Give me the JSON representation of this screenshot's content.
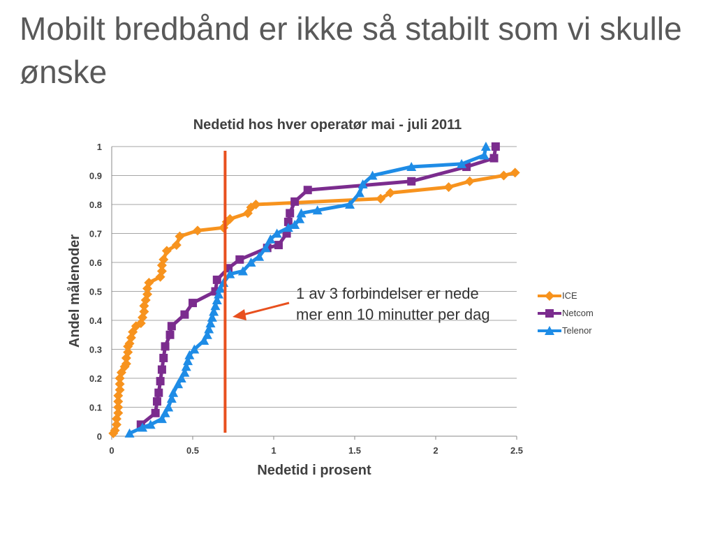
{
  "slide": {
    "title": "Mobilt bredbånd er ikke så stabilt som vi skulle ønske"
  },
  "annotation": {
    "line1": "1 av 3 forbindelser er nede",
    "line2": "mer enn 10 minutter per dag",
    "color": "#E8501E"
  },
  "chart_data": {
    "type": "line",
    "title": "Nedetid hos hver operatør mai - juli 2011",
    "xlabel": "Nedetid i prosent",
    "ylabel": "Andel målenoder",
    "xlim": [
      0,
      2.5
    ],
    "ylim": [
      0,
      1
    ],
    "x_ticks": [
      "0",
      "0.5",
      "1",
      "1.5",
      "2",
      "2.5"
    ],
    "y_ticks": [
      "0",
      "0.1",
      "0.2",
      "0.3",
      "0.4",
      "0.5",
      "0.6",
      "0.7",
      "0.8",
      "0.9",
      "1"
    ],
    "grid": "horizontal",
    "legend_position": "right",
    "reference_line_x": 0.7,
    "series": [
      {
        "name": "ICE",
        "color": "#F7931E",
        "marker": "diamond",
        "points": [
          [
            0.01,
            0.01
          ],
          [
            0.02,
            0.02
          ],
          [
            0.03,
            0.04
          ],
          [
            0.03,
            0.06
          ],
          [
            0.04,
            0.08
          ],
          [
            0.04,
            0.1
          ],
          [
            0.04,
            0.12
          ],
          [
            0.04,
            0.14
          ],
          [
            0.05,
            0.16
          ],
          [
            0.05,
            0.18
          ],
          [
            0.05,
            0.2
          ],
          [
            0.06,
            0.22
          ],
          [
            0.08,
            0.24
          ],
          [
            0.09,
            0.25
          ],
          [
            0.09,
            0.27
          ],
          [
            0.1,
            0.29
          ],
          [
            0.1,
            0.31
          ],
          [
            0.11,
            0.32
          ],
          [
            0.12,
            0.34
          ],
          [
            0.13,
            0.36
          ],
          [
            0.15,
            0.38
          ],
          [
            0.18,
            0.39
          ],
          [
            0.19,
            0.41
          ],
          [
            0.2,
            0.43
          ],
          [
            0.2,
            0.45
          ],
          [
            0.21,
            0.47
          ],
          [
            0.22,
            0.49
          ],
          [
            0.22,
            0.51
          ],
          [
            0.23,
            0.53
          ],
          [
            0.3,
            0.55
          ],
          [
            0.31,
            0.57
          ],
          [
            0.31,
            0.59
          ],
          [
            0.32,
            0.61
          ],
          [
            0.34,
            0.64
          ],
          [
            0.4,
            0.66
          ],
          [
            0.42,
            0.69
          ],
          [
            0.53,
            0.71
          ],
          [
            0.69,
            0.72
          ],
          [
            0.71,
            0.74
          ],
          [
            0.73,
            0.75
          ],
          [
            0.84,
            0.77
          ],
          [
            0.86,
            0.79
          ],
          [
            0.89,
            0.8
          ],
          [
            1.66,
            0.82
          ],
          [
            1.72,
            0.84
          ],
          [
            2.08,
            0.86
          ],
          [
            2.21,
            0.88
          ],
          [
            2.42,
            0.9
          ],
          [
            2.49,
            0.91
          ]
        ]
      },
      {
        "name": "Netcom",
        "color": "#7B2C8E",
        "marker": "square",
        "points": [
          [
            0.18,
            0.04
          ],
          [
            0.27,
            0.08
          ],
          [
            0.28,
            0.12
          ],
          [
            0.29,
            0.15
          ],
          [
            0.3,
            0.19
          ],
          [
            0.31,
            0.23
          ],
          [
            0.32,
            0.27
          ],
          [
            0.33,
            0.31
          ],
          [
            0.36,
            0.35
          ],
          [
            0.37,
            0.38
          ],
          [
            0.45,
            0.42
          ],
          [
            0.5,
            0.46
          ],
          [
            0.64,
            0.5
          ],
          [
            0.65,
            0.54
          ],
          [
            0.72,
            0.58
          ],
          [
            0.79,
            0.61
          ],
          [
            0.96,
            0.65
          ],
          [
            1.03,
            0.66
          ],
          [
            1.08,
            0.7
          ],
          [
            1.09,
            0.74
          ],
          [
            1.1,
            0.77
          ],
          [
            1.13,
            0.81
          ],
          [
            1.21,
            0.85
          ],
          [
            1.85,
            0.88
          ],
          [
            2.19,
            0.93
          ],
          [
            2.36,
            0.96
          ],
          [
            2.37,
            1.0
          ]
        ]
      },
      {
        "name": "Telenor",
        "color": "#1E8CE6",
        "marker": "triangle",
        "points": [
          [
            0.11,
            0.01
          ],
          [
            0.19,
            0.03
          ],
          [
            0.24,
            0.04
          ],
          [
            0.31,
            0.06
          ],
          [
            0.33,
            0.08
          ],
          [
            0.35,
            0.1
          ],
          [
            0.37,
            0.13
          ],
          [
            0.38,
            0.15
          ],
          [
            0.41,
            0.18
          ],
          [
            0.43,
            0.2
          ],
          [
            0.45,
            0.22
          ],
          [
            0.46,
            0.24
          ],
          [
            0.47,
            0.26
          ],
          [
            0.48,
            0.28
          ],
          [
            0.51,
            0.3
          ],
          [
            0.57,
            0.33
          ],
          [
            0.59,
            0.35
          ],
          [
            0.6,
            0.37
          ],
          [
            0.61,
            0.39
          ],
          [
            0.62,
            0.41
          ],
          [
            0.63,
            0.43
          ],
          [
            0.64,
            0.45
          ],
          [
            0.65,
            0.47
          ],
          [
            0.66,
            0.49
          ],
          [
            0.67,
            0.51
          ],
          [
            0.69,
            0.53
          ],
          [
            0.73,
            0.56
          ],
          [
            0.81,
            0.57
          ],
          [
            0.86,
            0.6
          ],
          [
            0.91,
            0.62
          ],
          [
            0.95,
            0.65
          ],
          [
            0.98,
            0.68
          ],
          [
            1.02,
            0.7
          ],
          [
            1.09,
            0.72
          ],
          [
            1.13,
            0.73
          ],
          [
            1.16,
            0.75
          ],
          [
            1.17,
            0.77
          ],
          [
            1.27,
            0.78
          ],
          [
            1.47,
            0.8
          ],
          [
            1.53,
            0.84
          ],
          [
            1.55,
            0.87
          ],
          [
            1.61,
            0.9
          ],
          [
            1.85,
            0.93
          ],
          [
            2.16,
            0.94
          ],
          [
            2.3,
            0.97
          ],
          [
            2.31,
            1.0
          ]
        ]
      }
    ]
  }
}
